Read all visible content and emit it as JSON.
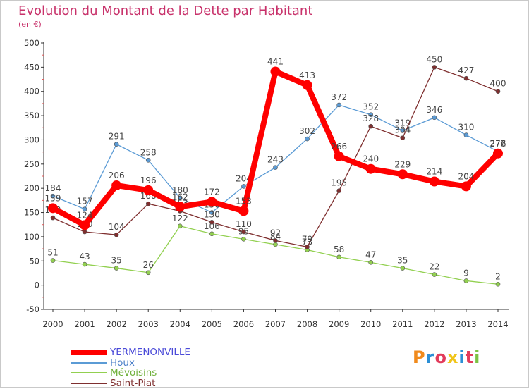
{
  "header": {
    "title": "Evolution du Montant de la Dette par Habitant",
    "subtitle": "(en €)"
  },
  "logo": {
    "text": "Proxiti",
    "colors": [
      "#f08a1c",
      "#2b8fd6",
      "#e23b5b",
      "#f0c419",
      "#2b8fd6",
      "#e23b5b",
      "#7cc243"
    ]
  },
  "chart_data": {
    "type": "line",
    "x": [
      "2000",
      "2001",
      "2002",
      "2003",
      "2004",
      "2005",
      "2006",
      "2007",
      "2008",
      "2009",
      "2010",
      "2011",
      "2012",
      "2013",
      "2014"
    ],
    "ylim": [
      -50,
      500
    ],
    "yticks": [
      -50,
      0,
      50,
      100,
      150,
      200,
      250,
      300,
      350,
      400,
      450,
      500
    ],
    "grid": false,
    "legend_position": "bottom-left",
    "series": [
      {
        "name": "YERMENONVILLE",
        "color": "#ff0000",
        "legend_color": "#4a4ad8",
        "highlight": true,
        "values": [
          159,
          124,
          206,
          196,
          162,
          172,
          153,
          441,
          413,
          266,
          240,
          229,
          214,
          204,
          272
        ]
      },
      {
        "name": "Houx",
        "color": "#5b9bd5",
        "legend_color": "#4a7fc8",
        "values": [
          184,
          157,
          291,
          258,
          180,
          150,
          204,
          243,
          302,
          372,
          352,
          319,
          346,
          310,
          276
        ]
      },
      {
        "name": "Mévoisins",
        "color": "#92d050",
        "legend_color": "#6fb03a",
        "values": [
          51,
          43,
          35,
          26,
          122,
          106,
          95,
          84,
          73,
          58,
          47,
          35,
          22,
          9,
          2
        ]
      },
      {
        "name": "Saint-Piat",
        "color": "#7f2f2f",
        "legend_color": "#7f2f2f",
        "values": [
          139,
          110,
          104,
          168,
          153,
          130,
          110,
          92,
          79,
          195,
          328,
          304,
          450,
          427,
          400
        ]
      }
    ]
  }
}
